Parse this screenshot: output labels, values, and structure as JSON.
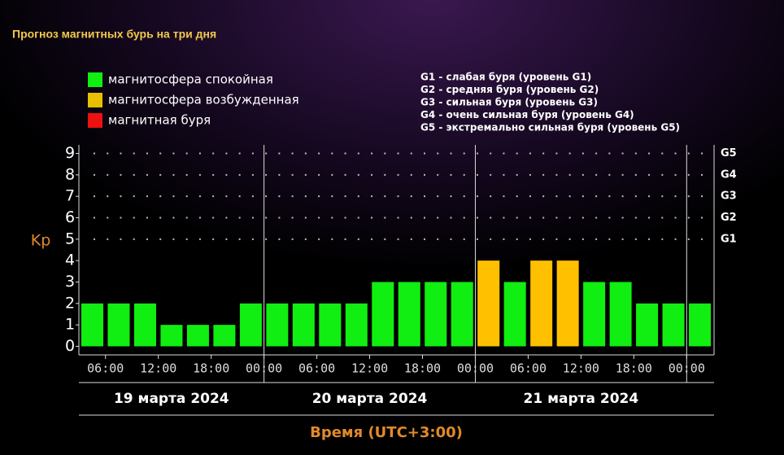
{
  "title": "Прогноз магнитных бурь на три дня",
  "chart_data": {
    "type": "bar",
    "legend": [
      {
        "name": "магнитосфера спокойная",
        "color": "#11ee11"
      },
      {
        "name": "магнитосфера возбужденная",
        "color": "#e8c000"
      },
      {
        "name": "магнитная буря",
        "color": "#ee1111"
      }
    ],
    "storm_legend": [
      "G1 - слабая буря (уровень G1)",
      "G2 - средняя буря (уровень G2)",
      "G3 - сильная буря (уровень G3)",
      "G4 - очень сильная буря (уровень G4)",
      "G5 - экстремально сильная буря (уровень G5)"
    ],
    "ylabel": "Kp",
    "xlabel": "Время (UTC+3:00)",
    "ylim": [
      -0.4,
      9.4
    ],
    "yticks": [
      0,
      1,
      2,
      3,
      4,
      5,
      6,
      7,
      8,
      9
    ],
    "y2ticks": [
      {
        "value": 5,
        "label": "G1"
      },
      {
        "value": 6,
        "label": "G2"
      },
      {
        "value": 7,
        "label": "G3"
      },
      {
        "value": 8,
        "label": "G4"
      },
      {
        "value": 9,
        "label": "G5"
      }
    ],
    "time_labels": [
      "06:00",
      "12:00",
      "18:00",
      "00:00",
      "06:00",
      "12:00",
      "18:00",
      "00:00",
      "06:00",
      "12:00",
      "18:00",
      "00:00"
    ],
    "days": [
      "19 марта 2024",
      "20 марта 2024",
      "21 марта 2024"
    ],
    "values": [
      2,
      2,
      2,
      1,
      1,
      1,
      2,
      2,
      2,
      2,
      2,
      3,
      3,
      3,
      3,
      4,
      3,
      4,
      4,
      3,
      3,
      2,
      2,
      2
    ],
    "colors": [
      "#11ee11",
      "#11ee11",
      "#11ee11",
      "#11ee11",
      "#11ee11",
      "#11ee11",
      "#11ee11",
      "#11ee11",
      "#11ee11",
      "#11ee11",
      "#11ee11",
      "#11ee11",
      "#11ee11",
      "#11ee11",
      "#11ee11",
      "#ffc000",
      "#11ee11",
      "#ffc000",
      "#ffc000",
      "#11ee11",
      "#11ee11",
      "#11ee11",
      "#11ee11",
      "#11ee11"
    ]
  }
}
